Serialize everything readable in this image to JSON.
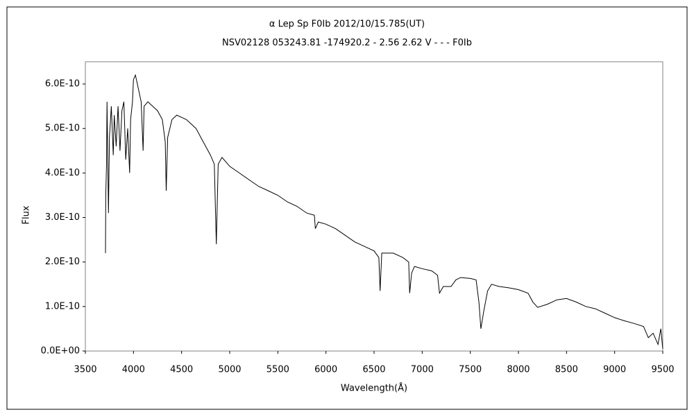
{
  "chart_data": {
    "type": "line",
    "title": "α Lep   Sp F0Ib   2012/10/15.785(UT)",
    "subtitle": "NSV02128 053243.81 -174920.2 - 2.56 2.62 V - - - F0Ib",
    "xlabel": "Wavelength(Å)",
    "ylabel": "Flux",
    "xlim": [
      3500,
      9500
    ],
    "xticks": [
      3500,
      4000,
      4500,
      5000,
      5500,
      6000,
      6500,
      7000,
      7500,
      8000,
      8500,
      9000,
      9500
    ],
    "ylim": [
      0,
      6.5e-10
    ],
    "yticks": [
      {
        "value": 0,
        "label": "0.0E+00"
      },
      {
        "value": 1e-10,
        "label": "1.0E-10"
      },
      {
        "value": 2e-10,
        "label": "2.0E-10"
      },
      {
        "value": 3e-10,
        "label": "3.0E-10"
      },
      {
        "value": 4e-10,
        "label": "4.0E-10"
      },
      {
        "value": 5e-10,
        "label": "5.0E-10"
      },
      {
        "value": 6e-10,
        "label": "6.0E-10"
      }
    ],
    "grid": false,
    "series": [
      {
        "color": "#000000",
        "x": [
          3709,
          3712,
          3720,
          3725,
          3740,
          3750,
          3770,
          3790,
          3800,
          3820,
          3840,
          3860,
          3880,
          3900,
          3920,
          3940,
          3960,
          3970,
          3990,
          4000,
          4020,
          4050,
          4080,
          4100,
          4110,
          4150,
          4200,
          4250,
          4300,
          4330,
          4340,
          4355,
          4400,
          4450,
          4500,
          4550,
          4600,
          4650,
          4700,
          4750,
          4800,
          4840,
          4861,
          4880,
          4920,
          5000,
          5100,
          5200,
          5300,
          5400,
          5500,
          5600,
          5700,
          5800,
          5880,
          5890,
          5920,
          6000,
          6100,
          6200,
          6300,
          6400,
          6500,
          6550,
          6563,
          6580,
          6700,
          6800,
          6860,
          6870,
          6890,
          6920,
          7000,
          7100,
          7160,
          7180,
          7220,
          7300,
          7350,
          7400,
          7500,
          7560,
          7590,
          7610,
          7640,
          7680,
          7720,
          7800,
          7900,
          8000,
          8100,
          8150,
          8200,
          8300,
          8400,
          8500,
          8600,
          8700,
          8800,
          8900,
          9000,
          9100,
          9200,
          9300,
          9350,
          9400,
          9450,
          9480,
          9500
        ],
        "values": [
          2.2e-10,
          3.5e-10,
          4.2e-10,
          5.6e-10,
          3.1e-10,
          4.8e-10,
          5.5e-10,
          4.4e-10,
          5.3e-10,
          4.6e-10,
          5.5e-10,
          4.5e-10,
          5.4e-10,
          5.6e-10,
          4.3e-10,
          5e-10,
          4e-10,
          5.2e-10,
          5.6e-10,
          6.1e-10,
          6.2e-10,
          5.9e-10,
          5.6e-10,
          4.5e-10,
          5.5e-10,
          5.6e-10,
          5.5e-10,
          5.4e-10,
          5.2e-10,
          4.7e-10,
          3.6e-10,
          4.8e-10,
          5.2e-10,
          5.3e-10,
          5.25e-10,
          5.2e-10,
          5.1e-10,
          5e-10,
          4.8e-10,
          4.6e-10,
          4.4e-10,
          4.2e-10,
          2.4e-10,
          4.2e-10,
          4.35e-10,
          4.15e-10,
          4e-10,
          3.85e-10,
          3.7e-10,
          3.6e-10,
          3.5e-10,
          3.35e-10,
          3.25e-10,
          3.1e-10,
          3.05e-10,
          2.75e-10,
          2.9e-10,
          2.85e-10,
          2.75e-10,
          2.6e-10,
          2.45e-10,
          2.35e-10,
          2.25e-10,
          2.1e-10,
          1.35e-10,
          2.2e-10,
          2.2e-10,
          2.1e-10,
          2e-10,
          1.3e-10,
          1.75e-10,
          1.9e-10,
          1.85e-10,
          1.8e-10,
          1.7e-10,
          1.3e-10,
          1.45e-10,
          1.45e-10,
          1.6e-10,
          1.65e-10,
          1.63e-10,
          1.6e-10,
          1.1e-10,
          5e-11,
          9e-11,
          1.35e-10,
          1.5e-10,
          1.45e-10,
          1.42e-10,
          1.38e-10,
          1.3e-10,
          1.1e-10,
          9.8e-11,
          1.05e-10,
          1.15e-10,
          1.18e-10,
          1.1e-10,
          1e-10,
          9.5e-11,
          8.5e-11,
          7.5e-11,
          6.8e-11,
          6.2e-11,
          5.5e-11,
          3e-11,
          4e-11,
          1.5e-11,
          5e-11,
          5e-12
        ]
      }
    ]
  }
}
